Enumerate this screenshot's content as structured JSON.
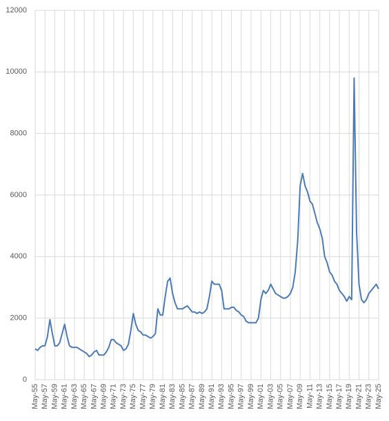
{
  "chart_data": {
    "type": "line",
    "categories": [
      "May-55",
      null,
      null,
      null,
      "May-57",
      null,
      null,
      null,
      "May-59",
      null,
      null,
      null,
      "May-61",
      null,
      null,
      null,
      "May-63",
      null,
      null,
      null,
      "May-65",
      null,
      null,
      null,
      "May-67",
      null,
      null,
      null,
      "May-69",
      null,
      null,
      null,
      "May-71",
      null,
      null,
      null,
      "May-73",
      null,
      null,
      null,
      "May-75",
      null,
      null,
      null,
      "May-77",
      null,
      null,
      null,
      "May-79",
      null,
      null,
      null,
      "May-81",
      null,
      null,
      null,
      "May-83",
      null,
      null,
      null,
      "May-85",
      null,
      null,
      null,
      "May-87",
      null,
      null,
      null,
      "May-89",
      null,
      null,
      null,
      "May-91",
      null,
      null,
      null,
      "May-93",
      null,
      null,
      null,
      "May-95",
      null,
      null,
      null,
      "May-97",
      null,
      null,
      null,
      "May-99",
      null,
      null,
      null,
      "May-01",
      null,
      null,
      null,
      "May-03",
      null,
      null,
      null,
      "May-05",
      null,
      null,
      null,
      "May-07",
      null,
      null,
      null,
      "May-09",
      null,
      null,
      null,
      "May-11",
      null,
      null,
      null,
      "May-13",
      null,
      null,
      null,
      "May-15",
      null,
      null,
      null,
      "May-17",
      null,
      null,
      null,
      "May-19",
      null,
      null,
      null,
      "May-21",
      null,
      null,
      null,
      "May-23",
      null,
      null,
      null,
      "May-25"
    ],
    "values": [
      1000,
      950,
      1050,
      1100,
      1100,
      1400,
      1950,
      1500,
      1100,
      1100,
      1200,
      1500,
      1800,
      1400,
      1100,
      1050,
      1050,
      1050,
      1000,
      950,
      900,
      850,
      750,
      800,
      900,
      950,
      800,
      800,
      800,
      900,
      1050,
      1300,
      1300,
      1200,
      1150,
      1100,
      950,
      1000,
      1150,
      1600,
      2150,
      1800,
      1600,
      1550,
      1450,
      1450,
      1400,
      1350,
      1400,
      1500,
      2300,
      2100,
      2100,
      2700,
      3200,
      3300,
      2800,
      2500,
      2300,
      2300,
      2300,
      2350,
      2400,
      2300,
      2200,
      2200,
      2150,
      2200,
      2150,
      2200,
      2300,
      2700,
      3200,
      3100,
      3100,
      3100,
      2900,
      2300,
      2300,
      2300,
      2350,
      2350,
      2250,
      2200,
      2100,
      2050,
      1900,
      1850,
      1850,
      1850,
      1850,
      2000,
      2600,
      2900,
      2800,
      2900,
      3100,
      2950,
      2800,
      2750,
      2700,
      2650,
      2650,
      2700,
      2800,
      3000,
      3500,
      4500,
      6300,
      6700,
      6300,
      6100,
      5800,
      5700,
      5400,
      5100,
      4900,
      4600,
      4000,
      3800,
      3500,
      3400,
      3200,
      3100,
      2900,
      2800,
      2700,
      2550,
      2700,
      2600,
      9800,
      4800,
      3100,
      2600,
      2500,
      2600,
      2800,
      2900,
      3000,
      3100,
      2950
    ],
    "color": "#4a7ab8",
    "ylim": [
      0,
      12000
    ],
    "yticks": [
      0,
      2000,
      4000,
      6000,
      8000,
      10000,
      12000
    ],
    "grid": true
  }
}
